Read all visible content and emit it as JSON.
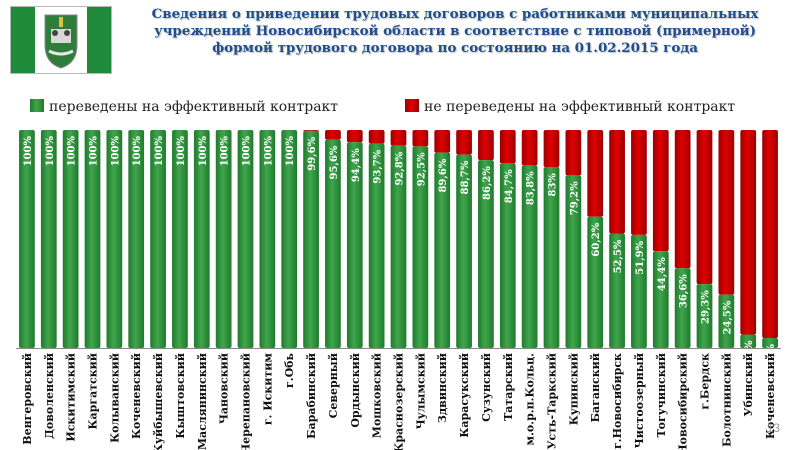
{
  "slide": {
    "title_lines": [
      "Сведения о приведении трудовых договоров с работниками муниципальных",
      "учреждений Новосибирской области в соответствие с типовой (примерной)",
      "формой трудового договора по состоянию на 01.02.2015 года"
    ],
    "number": "13"
  },
  "colors": {
    "green": "#1f7a2e",
    "green_light": "#3fa64b",
    "red": "#e00000",
    "red_dark": "#9c0000"
  },
  "chart_data": {
    "type": "bar",
    "stacked": true,
    "percent_stacked": true,
    "legend_position": "top",
    "grid": false,
    "ylim": [
      0,
      100
    ],
    "categories": [
      "Венгеровский",
      "Доволенский",
      "Искитимский",
      "Каргатский",
      "Колыванский",
      "Коченевский",
      "Куйбышевский",
      "Кыштовский",
      "Маслянинский",
      "Чановский",
      "Черепановский",
      "г. Искитим",
      "г.Обь",
      "Барабинский",
      "Северный",
      "Ордынский",
      "Мошковский",
      "Краснозерский",
      "Чулымский",
      "Здвинский",
      "Карасукский",
      "Сузунский",
      "Татарский",
      "м.о.р.п.Кольц.",
      "Усть-Таркский",
      "Купинский",
      "Баганский",
      "г.Новосибирск",
      "Чистоозерный",
      "Тогучинский",
      "Новосибирский",
      "г.Бердск",
      "Болотнинский",
      "Убинский",
      "Коченевский"
    ],
    "series": [
      {
        "name": "переведены на эффективный контракт",
        "values": [
          100,
          100,
          100,
          100,
          100,
          100,
          100,
          100,
          100,
          100,
          100,
          100,
          100,
          99.6,
          95.6,
          94.4,
          93.7,
          92.8,
          92.5,
          89.6,
          88.7,
          86.2,
          84.7,
          83.8,
          83,
          79.2,
          60.2,
          52.5,
          51.9,
          44.4,
          36.6,
          29.3,
          24.5,
          6.2,
          4.6
        ],
        "labels": [
          "100%",
          "100%",
          "100%",
          "100%",
          "100%",
          "100%",
          "100%",
          "100%",
          "100%",
          "100%",
          "100%",
          "100%",
          "100%",
          "99,6%",
          "95,6%",
          "94,4%",
          "93,7%",
          "92,8%",
          "92,5%",
          "89,6%",
          "88,7%",
          "86,2%",
          "84,7%",
          "83,8%",
          "83%",
          "79,2%",
          "60,2%",
          "52,5%",
          "51,9%",
          "44,4%",
          "36,6%",
          "29,3%",
          "24,5%",
          "6,2%",
          "4,6%"
        ]
      },
      {
        "name": "не переведены на эффективный контракт",
        "values": [
          0,
          0,
          0,
          0,
          0,
          0,
          0,
          0,
          0,
          0,
          0,
          0,
          0,
          0.4,
          4.4,
          5.6,
          6.3,
          7.2,
          7.5,
          10.4,
          11.3,
          13.8,
          15.3,
          16.2,
          17,
          20.8,
          39.8,
          47.5,
          48.1,
          55.6,
          63.4,
          70.7,
          75.5,
          93.8,
          95.4
        ]
      }
    ]
  }
}
